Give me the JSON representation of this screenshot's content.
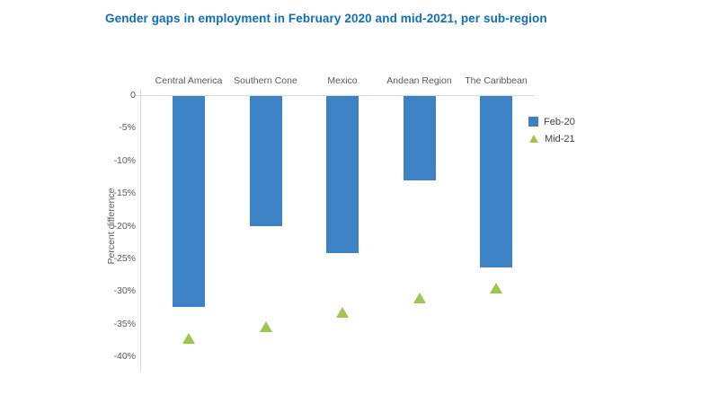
{
  "chart_data": {
    "type": "bar",
    "title": "Gender gaps in employment in February 2020 and mid-2021, per sub-region",
    "ylabel": "Percent difference",
    "xlabel": "",
    "categories": [
      "Central America",
      "Southern Cone",
      "Mexico",
      "Andean Region",
      "The Caribbean"
    ],
    "series": [
      {
        "name": "Feb-20",
        "type": "bar",
        "marker": "square",
        "color": "#3d82c4",
        "values": [
          -32.4,
          -20.0,
          -24.2,
          -13.0,
          -26.4
        ]
      },
      {
        "name": "Mid-21",
        "type": "scatter",
        "marker": "triangle",
        "color": "#9fc64a",
        "values": [
          -37.3,
          -35.4,
          -33.3,
          -31.0,
          -29.5
        ]
      }
    ],
    "ylim": [
      -40,
      0
    ],
    "ytick_labels": [
      "0",
      "-5%",
      "-10%",
      "-15%",
      "-20%",
      "-25%",
      "-30%",
      "-35%",
      "-40%"
    ],
    "ytick_values": [
      0,
      -5,
      -10,
      -15,
      -20,
      -25,
      -30,
      -35,
      -40
    ],
    "grid": false,
    "legend_position": "right"
  },
  "colors": {
    "title": "#0d6eb9",
    "bar": "#3d82c4",
    "marker": "#9fc64a",
    "axis_line": "#d9d9d9",
    "tick_text": "#595959",
    "category_text": "#595959",
    "legend_text": "#404040",
    "background": "#ffffff"
  }
}
